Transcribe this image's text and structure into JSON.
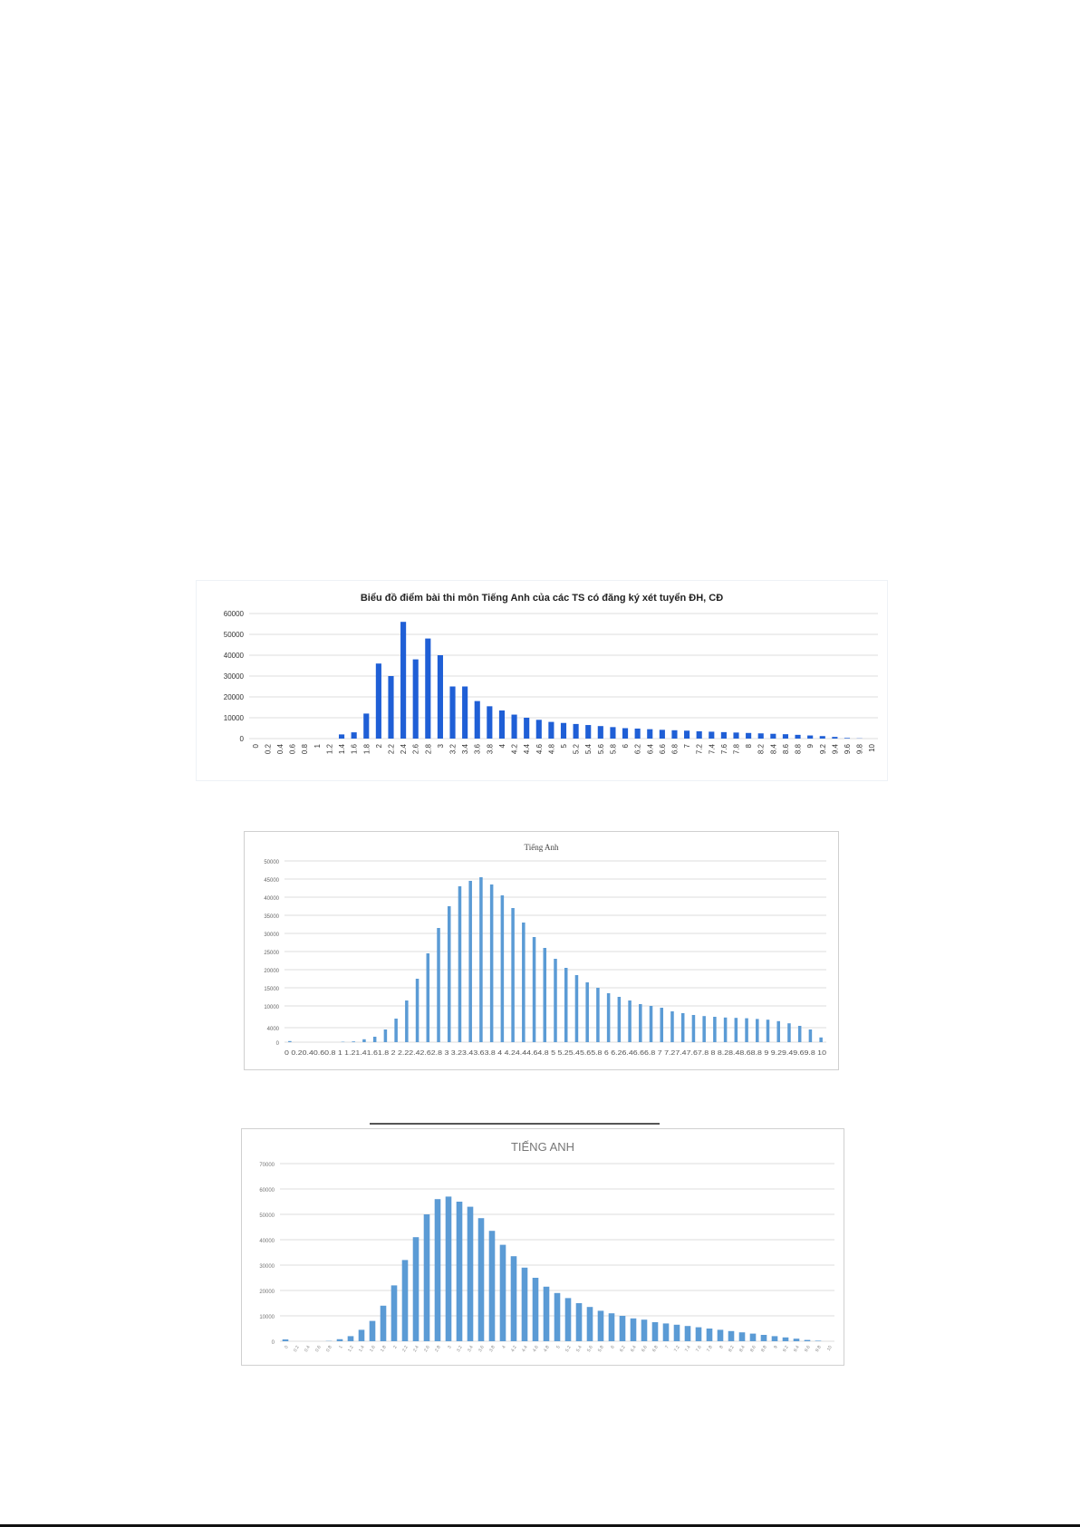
{
  "charts": [
    {
      "title": "Biểu đồ điểm bài thi môn Tiếng Anh của các TS có đăng ký xét tuyển ĐH, CĐ",
      "color": "#1f5fd6"
    },
    {
      "title": "Tiếng Anh",
      "color": "#5b9bd5"
    },
    {
      "title": "TIẾNG ANH",
      "color": "#5b9bd5"
    }
  ],
  "chart_data": [
    {
      "type": "bar",
      "title": "Biểu đồ điểm bài thi môn Tiếng Anh của các TS có đăng ký xét tuyển ĐH, CĐ",
      "xlabel": "",
      "ylabel": "",
      "ylim": [
        0,
        60000
      ],
      "yticks": [
        "0",
        "10000",
        "20000",
        "30000",
        "40000",
        "50000",
        "60000"
      ],
      "grid": true,
      "categories": [
        "0",
        "0.2",
        "0.4",
        "0.6",
        "0.8",
        "1",
        "1.2",
        "1.4",
        "1.6",
        "1.8",
        "2",
        "2.2",
        "2.4",
        "2.6",
        "2.8",
        "3",
        "3.2",
        "3.4",
        "3.6",
        "3.8",
        "4",
        "4.2",
        "4.4",
        "4.6",
        "4.8",
        "5",
        "5.2",
        "5.4",
        "5.6",
        "5.8",
        "6",
        "6.2",
        "6.4",
        "6.6",
        "6.8",
        "7",
        "7.2",
        "7.4",
        "7.6",
        "7.8",
        "8",
        "8.2",
        "8.4",
        "8.6",
        "8.8",
        "9",
        "9.2",
        "9.4",
        "9.6",
        "9.8",
        "10"
      ],
      "values": [
        0,
        0,
        0,
        0,
        0,
        0,
        0,
        2000,
        3000,
        12000,
        36000,
        30000,
        56000,
        38000,
        48000,
        40000,
        25000,
        25000,
        18000,
        15500,
        13500,
        11500,
        10000,
        9000,
        8000,
        7500,
        7000,
        6500,
        6000,
        5500,
        5000,
        4800,
        4500,
        4200,
        4000,
        3800,
        3500,
        3300,
        3100,
        2900,
        2700,
        2500,
        2300,
        2100,
        1800,
        1500,
        1200,
        800,
        300,
        100,
        0
      ]
    },
    {
      "type": "bar",
      "title": "Tiếng Anh",
      "xlabel": "",
      "ylabel": "",
      "ylim": [
        0,
        50000
      ],
      "yticks": [
        "0",
        "4000",
        "10000",
        "15000",
        "20000",
        "25000",
        "30000",
        "35000",
        "40000",
        "45000",
        "50000"
      ],
      "grid": true,
      "categories": [
        "0",
        "0.2",
        "0.4",
        "0.6",
        "0.8",
        "1",
        "1.2",
        "1.4",
        "1.6",
        "1.8",
        "2",
        "2.2",
        "2.4",
        "2.6",
        "2.8",
        "3",
        "3.2",
        "3.4",
        "3.6",
        "3.8",
        "4",
        "4.2",
        "4.4",
        "4.6",
        "4.8",
        "5",
        "5.2",
        "5.4",
        "5.6",
        "5.8",
        "6",
        "6.2",
        "6.4",
        "6.6",
        "6.8",
        "7",
        "7.2",
        "7.4",
        "7.6",
        "7.8",
        "8",
        "8.2",
        "8.4",
        "8.6",
        "8.8",
        "9",
        "9.2",
        "9.4",
        "9.6",
        "9.8",
        "10"
      ],
      "x_tick_text": "0 0.20.40.60.8 1 1.21.41.61.8 2 2.22.42.62.8 3 3.23.43.63.8 4 4.24.44.64.8 5 5.25.45.65.8 6 6.26.46.66.8 7 7.27.47.67.8 8 8.28.48.68.8 9 9.29.49.69.8 10",
      "values": [
        300,
        0,
        0,
        0,
        0,
        100,
        200,
        800,
        1500,
        3500,
        6500,
        11500,
        17500,
        24500,
        31500,
        37500,
        43000,
        44500,
        45500,
        43500,
        40500,
        37000,
        33000,
        29000,
        26000,
        23000,
        20500,
        18500,
        16500,
        15000,
        13500,
        12500,
        11500,
        10500,
        10000,
        9500,
        8500,
        8000,
        7500,
        7200,
        7000,
        6800,
        6700,
        6600,
        6400,
        6200,
        5800,
        5200,
        4500,
        3500,
        1300
      ]
    },
    {
      "type": "bar",
      "title": "TIẾNG ANH",
      "xlabel": "",
      "ylabel": "",
      "ylim": [
        0,
        70000
      ],
      "yticks": [
        "0",
        "10000",
        "20000",
        "30000",
        "40000",
        "50000",
        "60000",
        "70000"
      ],
      "grid": true,
      "categories": [
        "0",
        "0.2",
        "0.4",
        "0.6",
        "0.8",
        "1",
        "1.2",
        "1.4",
        "1.6",
        "1.8",
        "2",
        "2.2",
        "2.4",
        "2.6",
        "2.8",
        "3",
        "3.2",
        "3.4",
        "3.6",
        "3.8",
        "4",
        "4.2",
        "4.4",
        "4.6",
        "4.8",
        "5",
        "5.2",
        "5.4",
        "5.6",
        "5.8",
        "6",
        "6.2",
        "6.4",
        "6.6",
        "6.8",
        "7",
        "7.2",
        "7.4",
        "7.6",
        "7.8",
        "8",
        "8.2",
        "8.4",
        "8.6",
        "8.8",
        "9",
        "9.2",
        "9.4",
        "9.6",
        "9.8",
        "10"
      ],
      "values": [
        700,
        0,
        0,
        0,
        100,
        800,
        2000,
        4500,
        8000,
        14000,
        22000,
        32000,
        41000,
        50000,
        56000,
        57000,
        55000,
        53000,
        48500,
        43500,
        38000,
        33500,
        29000,
        25000,
        21500,
        19000,
        17000,
        15000,
        13500,
        12000,
        11000,
        10000,
        9000,
        8500,
        7500,
        7000,
        6500,
        6000,
        5500,
        5000,
        4500,
        4000,
        3500,
        3000,
        2500,
        2000,
        1500,
        1000,
        500,
        200,
        0
      ]
    }
  ]
}
